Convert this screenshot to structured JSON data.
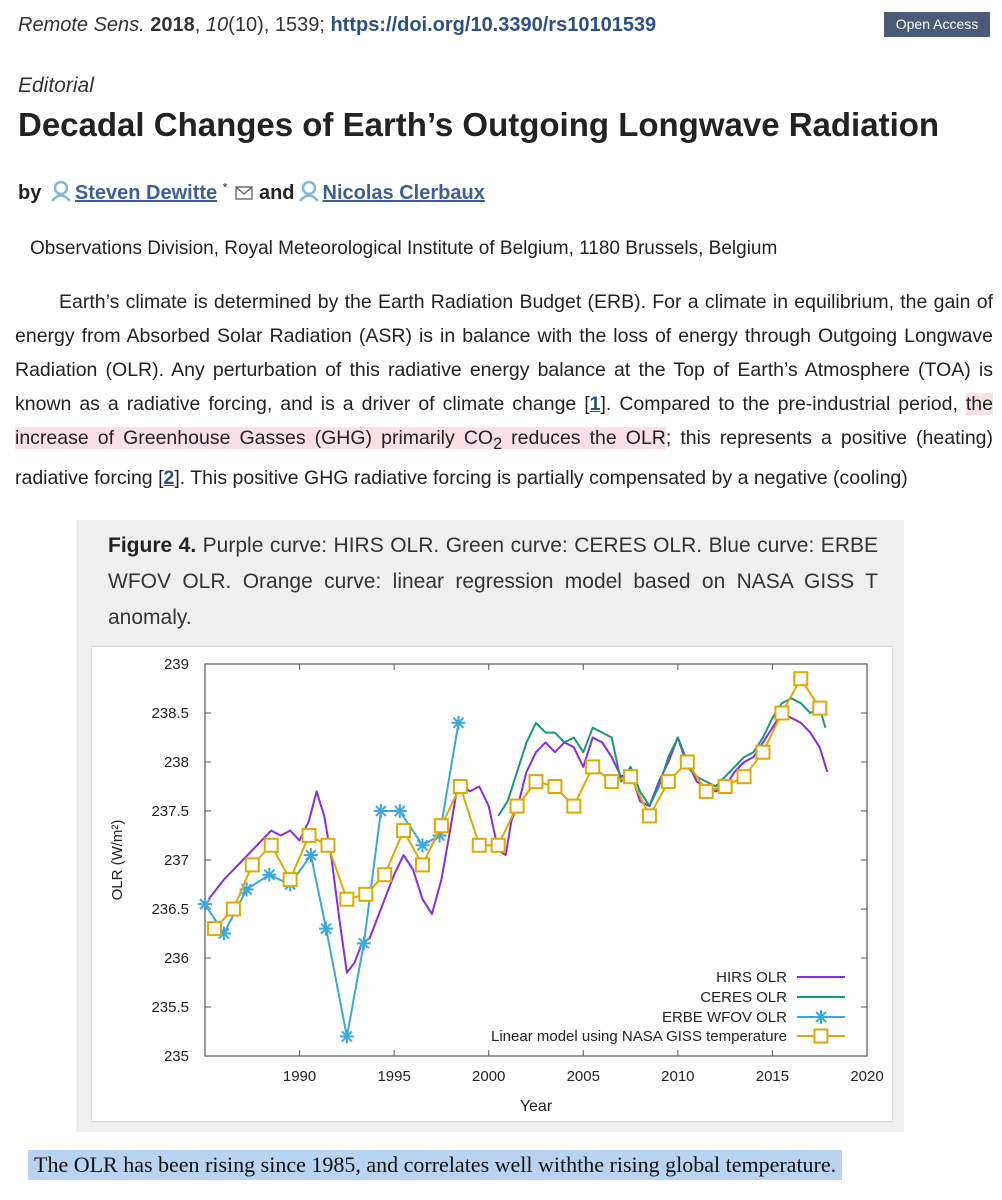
{
  "citation": {
    "journal": "Remote Sens.",
    "year": "2018",
    "volume": "10",
    "issue": "(10), 1539;",
    "doi": "https://doi.org/10.3390/rs10101539"
  },
  "badge": {
    "label": "Open Access"
  },
  "article_type": "Editorial",
  "title": "Decadal Changes of Earth’s Outgoing Longwave Radiation",
  "byline": {
    "by": "by",
    "author1": "Steven Dewitte",
    "marker": "*",
    "and": "and",
    "author2": "Nicolas Clerbaux"
  },
  "affiliation": "Observations Division, Royal Meteorological Institute of Belgium, 1180 Brussels, Belgium",
  "body": {
    "p1": "Earth’s climate is determined by the Earth Radiation Budget (ERB). For a climate in equilibrium, the gain of energy from Absorbed Solar Radiation (ASR) is in balance with the loss of energy through Outgoing Longwave Radiation (OLR). Any perturbation of this radiative energy balance at the Top of Earth’s Atmosphere (TOA) is known as a radiative forcing, and is a driver of climate change [",
    "ref1": "1",
    "p2": "]. Compared to the pre-industrial period, ",
    "hl1": "the increase of Greenhouse Gasses (GHG) primarily CO",
    "sub": "2",
    "hl2": " reduces the OLR",
    "p3": "; this represents a positive (heating) radiative forcing [",
    "ref2": "2",
    "p4": "]. This positive GHG radiative forcing is partially compensated by a negative (cooling)"
  },
  "figure": {
    "label": "Figure 4.",
    "caption": " Purple curve: HIRS OLR. Green curve: CERES OLR. Blue curve: ERBE WFOV OLR. Orange curve: linear regression model based on NASA GISS T anomaly."
  },
  "chart_data": {
    "type": "line",
    "xlabel": "Year",
    "ylabel": "OLR (W/m²)",
    "xlim": [
      1985,
      2020
    ],
    "ylim": [
      235,
      239
    ],
    "xticks": [
      1990,
      1995,
      2000,
      2005,
      2010,
      2015,
      2020
    ],
    "yticks": [
      235,
      235.5,
      236,
      236.5,
      237,
      237.5,
      238,
      238.5,
      239
    ],
    "legend_position": "bottom-right",
    "series": [
      {
        "name": "HIRS OLR",
        "color": "#8a2be2",
        "marker": "none",
        "x": [
          1985.2,
          1985.6,
          1986.0,
          1986.5,
          1987.0,
          1987.5,
          1988.0,
          1988.5,
          1989.0,
          1989.5,
          1990.0,
          1990.5,
          1990.9,
          1991.3,
          1991.7,
          1992.1,
          1992.5,
          1992.9,
          1993.3,
          1993.7,
          1994.1,
          1994.5,
          1995.0,
          1995.5,
          1996.0,
          1996.5,
          1997.0,
          1997.5,
          1998.0,
          1998.3,
          1998.7,
          1999.0,
          1999.5,
          2000.0,
          2000.5,
          2000.9,
          2001.2,
          2001.6,
          2002.0,
          2002.5,
          2003.0,
          2003.5,
          2004.0,
          2004.5,
          2005.0,
          2005.5,
          2006.0,
          2006.5,
          2007.0,
          2007.5,
          2008.0,
          2008.5,
          2009.0,
          2009.5,
          2010.0,
          2010.5,
          2011.0,
          2011.5,
          2012.0,
          2012.5,
          2013.0,
          2013.5,
          2014.0,
          2014.5,
          2015.0,
          2015.5,
          2016.0,
          2016.5,
          2017.0,
          2017.5,
          2017.9
        ],
        "values": [
          236.6,
          236.7,
          236.8,
          236.9,
          237.0,
          237.1,
          237.2,
          237.3,
          237.25,
          237.3,
          237.2,
          237.4,
          237.7,
          237.45,
          237.0,
          236.4,
          235.85,
          235.95,
          236.15,
          236.2,
          236.4,
          236.6,
          236.85,
          237.05,
          236.9,
          236.6,
          236.45,
          236.8,
          237.35,
          237.7,
          237.75,
          237.7,
          237.75,
          237.55,
          237.1,
          237.05,
          237.4,
          237.6,
          237.9,
          238.1,
          238.2,
          238.1,
          238.2,
          238.15,
          237.95,
          238.25,
          238.2,
          238.05,
          237.85,
          237.9,
          237.6,
          237.55,
          237.8,
          238.0,
          238.25,
          238.0,
          237.8,
          237.75,
          237.7,
          237.75,
          237.9,
          238.0,
          238.05,
          238.2,
          238.35,
          238.5,
          238.45,
          238.4,
          238.3,
          238.15,
          237.9
        ]
      },
      {
        "name": "CERES OLR",
        "color": "#17977c",
        "marker": "none",
        "x": [
          2000.5,
          2001.0,
          2001.5,
          2002.0,
          2002.5,
          2003.0,
          2003.5,
          2004.0,
          2004.5,
          2005.0,
          2005.5,
          2006.0,
          2006.5,
          2007.0,
          2007.5,
          2008.0,
          2008.5,
          2009.0,
          2009.5,
          2010.0,
          2010.5,
          2011.0,
          2011.5,
          2012.0,
          2012.5,
          2013.0,
          2013.5,
          2014.0,
          2014.5,
          2015.0,
          2015.5,
          2016.0,
          2016.5,
          2017.0,
          2017.5,
          2017.8
        ],
        "values": [
          237.45,
          237.6,
          237.9,
          238.2,
          238.4,
          238.3,
          238.3,
          238.2,
          238.25,
          238.1,
          238.35,
          238.3,
          238.25,
          237.8,
          237.95,
          237.7,
          237.55,
          237.75,
          238.05,
          238.25,
          237.95,
          237.85,
          237.8,
          237.75,
          237.85,
          237.95,
          238.05,
          238.1,
          238.25,
          238.45,
          238.6,
          238.65,
          238.6,
          238.5,
          238.55,
          238.35
        ]
      },
      {
        "name": "ERBE WFOV OLR",
        "color": "#3aa8dc",
        "marker": "asterisk",
        "x": [
          1985.0,
          1986.0,
          1987.2,
          1988.4,
          1989.5,
          1990.6,
          1991.4,
          1992.5,
          1993.4,
          1994.3,
          1995.3,
          1996.5,
          1997.4,
          1998.4
        ],
        "values": [
          236.55,
          236.25,
          236.7,
          236.85,
          236.75,
          237.05,
          236.3,
          235.2,
          236.15,
          237.5,
          237.5,
          237.15,
          237.25,
          238.4
        ]
      },
      {
        "name": "Linear model using NASA GISS temperature",
        "color": "#e0a800",
        "marker": "square",
        "x": [
          1985.5,
          1986.5,
          1987.5,
          1988.5,
          1989.5,
          1990.5,
          1991.5,
          1992.5,
          1993.5,
          1994.5,
          1995.5,
          1996.5,
          1997.5,
          1998.5,
          1999.5,
          2000.5,
          2001.5,
          2002.5,
          2003.5,
          2004.5,
          2005.5,
          2006.5,
          2007.5,
          2008.5,
          2009.5,
          2010.5,
          2011.5,
          2012.5,
          2013.5,
          2014.5,
          2015.5,
          2016.5,
          2017.5
        ],
        "values": [
          236.3,
          236.5,
          236.95,
          237.15,
          236.8,
          237.25,
          237.15,
          236.6,
          236.65,
          236.85,
          237.3,
          236.95,
          237.35,
          237.75,
          237.15,
          237.15,
          237.55,
          237.8,
          237.75,
          237.55,
          237.95,
          237.8,
          237.85,
          237.45,
          237.8,
          238.0,
          237.7,
          237.75,
          237.85,
          238.1,
          238.5,
          238.85,
          238.55
        ]
      }
    ]
  },
  "summary": "The OLR has been rising since 1985, and correlates well withthe rising global temperature."
}
